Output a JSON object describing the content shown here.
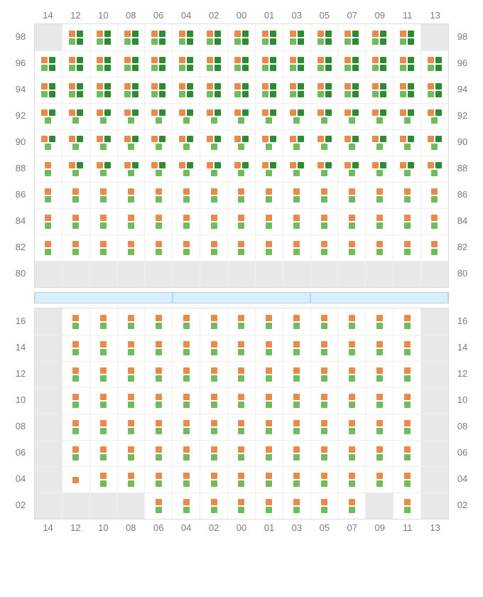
{
  "colors": {
    "orange": "#e98a4b",
    "green_light": "#71bb5f",
    "green_dark": "#2e8a33",
    "disabled_bg": "#e8e8e8",
    "grid_border": "#dcdcdc",
    "cell_border": "#eeeeee",
    "label_text": "#7a7a7a",
    "divider_bg": "#d4f0ff",
    "divider_border": "#a8ddfb"
  },
  "typography": {
    "label_fontsize": 13
  },
  "columns": [
    "14",
    "12",
    "10",
    "08",
    "06",
    "04",
    "02",
    "00",
    "01",
    "03",
    "05",
    "07",
    "09",
    "11",
    "13"
  ],
  "sections": [
    {
      "rows": [
        "98",
        "96",
        "94",
        "92",
        "90",
        "88",
        "86",
        "84",
        "82",
        "80"
      ],
      "col_labels_position": "top",
      "cells": {
        "98": {
          "pattern": "ogd_glg",
          "disabled_cols": [
            "14",
            "13"
          ]
        },
        "96": {
          "pattern": "ogd_glg"
        },
        "94": {
          "pattern": "ogd_glg"
        },
        "92": {
          "pattern": "ogd_gl"
        },
        "90": {
          "pattern": "ogd_gl"
        },
        "88": {
          "pattern": "ogd_gl",
          "override": {
            "14": "o_gl"
          }
        },
        "86": {
          "pattern": "o_gl"
        },
        "84": {
          "pattern": "o_gl"
        },
        "82": {
          "pattern": "o_gl"
        },
        "80": {
          "pattern": "empty",
          "all_disabled": true
        }
      }
    },
    {
      "rows": [
        "16",
        "14",
        "12",
        "10",
        "08",
        "06",
        "04",
        "02"
      ],
      "col_labels_position": "bottom",
      "cells": {
        "16": {
          "pattern": "o_gl",
          "disabled_cols": [
            "14",
            "13"
          ]
        },
        "14": {
          "pattern": "o_gl",
          "disabled_cols": [
            "14",
            "13"
          ]
        },
        "12": {
          "pattern": "o_gl",
          "disabled_cols": [
            "14",
            "13"
          ]
        },
        "10": {
          "pattern": "o_gl",
          "disabled_cols": [
            "14",
            "13"
          ]
        },
        "08": {
          "pattern": "o_gl",
          "disabled_cols": [
            "14",
            "13"
          ]
        },
        "06": {
          "pattern": "o_gl",
          "disabled_cols": [
            "14",
            "13"
          ]
        },
        "04": {
          "pattern": "o_gl",
          "disabled_cols": [
            "14",
            "13"
          ],
          "override": {
            "12": "o_only"
          }
        },
        "02": {
          "pattern": "o_gl",
          "disabled_cols": [
            "14",
            "12",
            "10",
            "08",
            "09",
            "13"
          ]
        }
      }
    }
  ],
  "patterns": {
    "ogd_glg": {
      "top": [
        "orange",
        "green_dark"
      ],
      "bottom": [
        "green_light",
        "green_dark"
      ]
    },
    "ogd_gl": {
      "top": [
        "orange",
        "green_dark"
      ],
      "bottom": [
        "green_light"
      ]
    },
    "o_gl": {
      "top": [
        "orange"
      ],
      "bottom": [
        "green_light"
      ]
    },
    "o_only": {
      "top": [
        "orange"
      ],
      "bottom": []
    },
    "empty": {
      "top": [],
      "bottom": []
    }
  },
  "divider": {
    "segments": 3
  }
}
